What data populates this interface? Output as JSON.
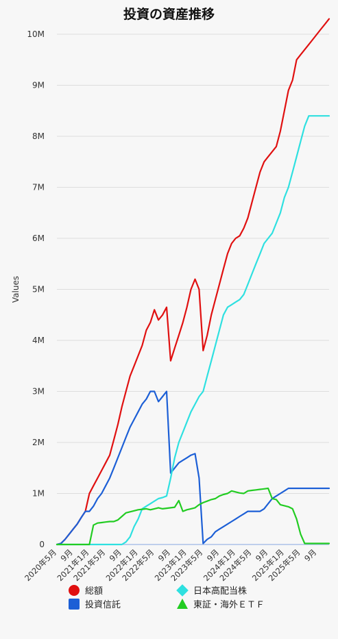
{
  "chart_data": {
    "type": "line",
    "title": "投資の資産推移",
    "xlabel": "",
    "ylabel": "Values",
    "ylim": [
      0,
      10000000
    ],
    "yticks": [
      {
        "v": 0,
        "label": "0"
      },
      {
        "v": 1000000,
        "label": "1M"
      },
      {
        "v": 2000000,
        "label": "2M"
      },
      {
        "v": 3000000,
        "label": "3M"
      },
      {
        "v": 4000000,
        "label": "4M"
      },
      {
        "v": 5000000,
        "label": "5M"
      },
      {
        "v": 6000000,
        "label": "6M"
      },
      {
        "v": 7000000,
        "label": "7M"
      },
      {
        "v": 8000000,
        "label": "8M"
      },
      {
        "v": 9000000,
        "label": "9M"
      },
      {
        "v": 10000000,
        "label": "10M"
      }
    ],
    "xticks": [
      {
        "v": "2020-05",
        "label": "2020年5月"
      },
      {
        "v": "2020-09",
        "label": "9月"
      },
      {
        "v": "2021-01",
        "label": "2021年1月"
      },
      {
        "v": "2021-05",
        "label": "2021年5月"
      },
      {
        "v": "2021-09",
        "label": "9月"
      },
      {
        "v": "2022-01",
        "label": "2022年1月"
      },
      {
        "v": "2022-05",
        "label": "2022年5月"
      },
      {
        "v": "2022-09",
        "label": "9月"
      },
      {
        "v": "2023-01",
        "label": "2023年1月"
      },
      {
        "v": "2023-05",
        "label": "2023年5月"
      },
      {
        "v": "2023-09",
        "label": "9月"
      },
      {
        "v": "2024-01",
        "label": "2024年1月"
      },
      {
        "v": "2024-05",
        "label": "2024年5月"
      },
      {
        "v": "2024-09",
        "label": "9月"
      },
      {
        "v": "2025-01",
        "label": "2025年1月"
      },
      {
        "v": "2025-05",
        "label": "2025年5月"
      },
      {
        "v": "2025-09",
        "label": "9月"
      }
    ],
    "grid": true,
    "legend_position": "bottom",
    "x": [
      "2020-05",
      "2020-06",
      "2020-07",
      "2020-08",
      "2020-09",
      "2020-10",
      "2020-11",
      "2020-12",
      "2021-01",
      "2021-02",
      "2021-03",
      "2021-04",
      "2021-05",
      "2021-06",
      "2021-07",
      "2021-08",
      "2021-09",
      "2021-10",
      "2021-11",
      "2021-12",
      "2022-01",
      "2022-02",
      "2022-03",
      "2022-04",
      "2022-05",
      "2022-06",
      "2022-07",
      "2022-08",
      "2022-09",
      "2022-10",
      "2022-11",
      "2022-12",
      "2023-01",
      "2023-02",
      "2023-03",
      "2023-04",
      "2023-05",
      "2023-06",
      "2023-07",
      "2023-08",
      "2023-09",
      "2023-10",
      "2023-11",
      "2023-12",
      "2024-01",
      "2024-02",
      "2024-03",
      "2024-04",
      "2024-05",
      "2024-06",
      "2024-07",
      "2024-08",
      "2024-09",
      "2024-10",
      "2024-11",
      "2024-12",
      "2025-01",
      "2025-02",
      "2025-03",
      "2025-04",
      "2025-05",
      "2025-06",
      "2025-07",
      "2025-08",
      "2025-09",
      "2025-10",
      "2025-11",
      "2025-12"
    ],
    "series": [
      {
        "name": "総額",
        "color": "#e01010",
        "marker": "circle",
        "values": [
          0,
          20000,
          100000,
          200000,
          300000,
          400000,
          530000,
          650000,
          1000000,
          1150000,
          1300000,
          1450000,
          1600000,
          1750000,
          2050000,
          2350000,
          2700000,
          3000000,
          3300000,
          3500000,
          3700000,
          3900000,
          4200000,
          4350000,
          4600000,
          4400000,
          4500000,
          4650000,
          3600000,
          3850000,
          4100000,
          4350000,
          4650000,
          5000000,
          5200000,
          5000000,
          3800000,
          4100000,
          4500000,
          4800000,
          5100000,
          5400000,
          5700000,
          5900000,
          6000000,
          6050000,
          6200000,
          6400000,
          6700000,
          7000000,
          7300000,
          7500000,
          7600000,
          7700000,
          7800000,
          8100000,
          8500000,
          8900000,
          9100000,
          9500000,
          9600000,
          9700000,
          9800000,
          9900000,
          10000000,
          10100000,
          10200000,
          10300000
        ]
      },
      {
        "name": "投資信託",
        "color": "#1c5fd6",
        "marker": "square",
        "values": [
          0,
          20000,
          100000,
          200000,
          300000,
          400000,
          530000,
          650000,
          650000,
          750000,
          900000,
          1000000,
          1150000,
          1300000,
          1500000,
          1700000,
          1900000,
          2100000,
          2300000,
          2450000,
          2600000,
          2750000,
          2850000,
          3000000,
          3000000,
          2800000,
          2900000,
          3000000,
          1400000,
          1500000,
          1600000,
          1650000,
          1700000,
          1750000,
          1780000,
          1300000,
          20000,
          100000,
          150000,
          250000,
          300000,
          350000,
          400000,
          450000,
          500000,
          550000,
          600000,
          650000,
          650000,
          650000,
          650000,
          700000,
          800000,
          900000,
          950000,
          1000000,
          1050000,
          1100000,
          1100000,
          1100000,
          1100000,
          1100000,
          1100000,
          1100000,
          1100000,
          1100000,
          1100000,
          1100000
        ]
      },
      {
        "name": "日本高配当株",
        "color": "#2ee0e0",
        "marker": "diamond",
        "values": [
          0,
          0,
          0,
          0,
          0,
          0,
          0,
          0,
          0,
          0,
          0,
          0,
          0,
          0,
          0,
          0,
          0,
          50000,
          150000,
          350000,
          500000,
          700000,
          750000,
          800000,
          850000,
          900000,
          920000,
          950000,
          1300000,
          1700000,
          2000000,
          2200000,
          2400000,
          2600000,
          2750000,
          2900000,
          3000000,
          3300000,
          3600000,
          3900000,
          4200000,
          4500000,
          4650000,
          4700000,
          4750000,
          4800000,
          4900000,
          5100000,
          5300000,
          5500000,
          5700000,
          5900000,
          6000000,
          6100000,
          6300000,
          6500000,
          6800000,
          7000000,
          7300000,
          7600000,
          7900000,
          8200000,
          8400000,
          8400000,
          8400000,
          8400000,
          8400000,
          8400000
        ]
      },
      {
        "name": "東証・海外ＥＴＦ",
        "color": "#22cc22",
        "marker": "triangle",
        "values": [
          0,
          0,
          0,
          0,
          0,
          0,
          0,
          0,
          0,
          380000,
          420000,
          430000,
          440000,
          450000,
          450000,
          480000,
          550000,
          620000,
          640000,
          660000,
          680000,
          690000,
          700000,
          680000,
          700000,
          720000,
          700000,
          710000,
          720000,
          730000,
          860000,
          650000,
          680000,
          700000,
          720000,
          780000,
          820000,
          850000,
          880000,
          900000,
          950000,
          980000,
          1000000,
          1050000,
          1030000,
          1010000,
          1000000,
          1050000,
          1060000,
          1070000,
          1080000,
          1090000,
          1100000,
          900000,
          880000,
          780000,
          760000,
          740000,
          700000,
          500000,
          200000,
          20000,
          20000,
          20000,
          20000,
          20000,
          20000,
          20000
        ]
      }
    ]
  }
}
